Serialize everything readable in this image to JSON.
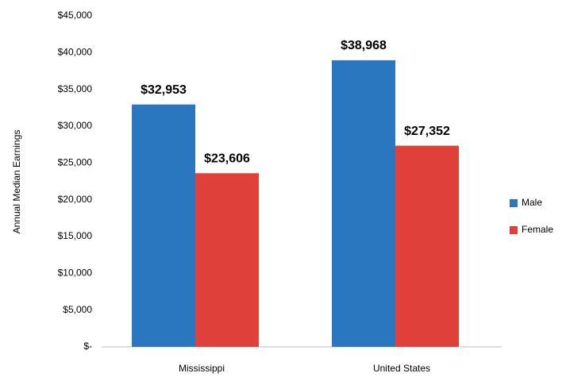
{
  "chart_data": {
    "type": "bar",
    "y_label": "Annual Median Earnings",
    "categories": [
      "Mississippi",
      "United States"
    ],
    "series": [
      {
        "name": "Male",
        "color": "#2a77c0",
        "values": [
          32953,
          38968
        ],
        "value_labels": [
          "$32,953",
          "$38,968"
        ]
      },
      {
        "name": "Female",
        "color": "#e0403a",
        "values": [
          23606,
          27352
        ],
        "value_labels": [
          "$23,606",
          "$27,352"
        ]
      }
    ],
    "ylim": [
      0,
      45000
    ],
    "yticks": [
      {
        "value": 0,
        "label": "$-"
      },
      {
        "value": 5000,
        "label": "$5,000"
      },
      {
        "value": 10000,
        "label": "$10,000"
      },
      {
        "value": 15000,
        "label": "$15,000"
      },
      {
        "value": 20000,
        "label": "$20,000"
      },
      {
        "value": 25000,
        "label": "$25,000"
      },
      {
        "value": 30000,
        "label": "$30,000"
      },
      {
        "value": 35000,
        "label": "$35,000"
      },
      {
        "value": 40000,
        "label": "$40,000"
      },
      {
        "value": 45000,
        "label": "$45,000"
      }
    ],
    "grid": false,
    "legend": "right"
  }
}
